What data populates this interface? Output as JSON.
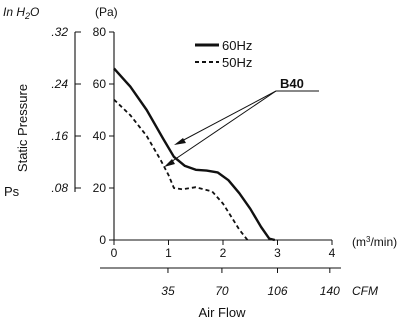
{
  "chart_data": {
    "type": "line",
    "x_primary": {
      "ticks": [
        "0",
        "1",
        "2",
        "3",
        "4"
      ],
      "range": [
        0,
        4
      ],
      "unit_prefix": "(m",
      "unit_sup": "3",
      "unit_suffix": "/min)"
    },
    "x_secondary": {
      "ticks": [
        "35",
        "70",
        "106",
        "140"
      ],
      "tick_values_m3min": [
        0.99,
        1.98,
        3.0,
        3.96
      ],
      "unit": "CFM"
    },
    "xlabel": "Air Flow",
    "y_primary": {
      "ticks": [
        "0",
        "20",
        "40",
        "60",
        "80"
      ],
      "range": [
        0,
        80
      ],
      "unit": "(Pa)"
    },
    "y_secondary": {
      "ticks": [
        ".08",
        ".16",
        ".24",
        ".32"
      ],
      "tick_values_pa": [
        20,
        40,
        60,
        80
      ],
      "unit_prefix": "In H",
      "unit_sub": "2",
      "unit_suffix": "O"
    },
    "ylabel": "Static Pressure",
    "ylabel_symbol": "Ps",
    "annotation": "B40",
    "grid": false,
    "legend": "top-right",
    "series": [
      {
        "name": "60Hz",
        "style": "solid",
        "color": "#111111",
        "x": [
          0,
          0.3,
          0.6,
          0.9,
          1.1,
          1.3,
          1.5,
          1.7,
          1.9,
          2.1,
          2.3,
          2.5,
          2.7,
          2.85,
          2.95
        ],
        "y": [
          66,
          59,
          50,
          39,
          32,
          28.5,
          27,
          26.7,
          26,
          23,
          18,
          12,
          5,
          0.5,
          0
        ]
      },
      {
        "name": "50Hz",
        "style": "dashed",
        "color": "#111111",
        "x": [
          0,
          0.3,
          0.6,
          0.85,
          1.0,
          1.1,
          1.25,
          1.5,
          1.8,
          2.0,
          2.15,
          2.3,
          2.45
        ],
        "y": [
          54,
          48,
          40,
          31,
          25,
          20,
          19.5,
          20.3,
          18.7,
          14,
          9,
          4,
          0
        ]
      }
    ]
  }
}
